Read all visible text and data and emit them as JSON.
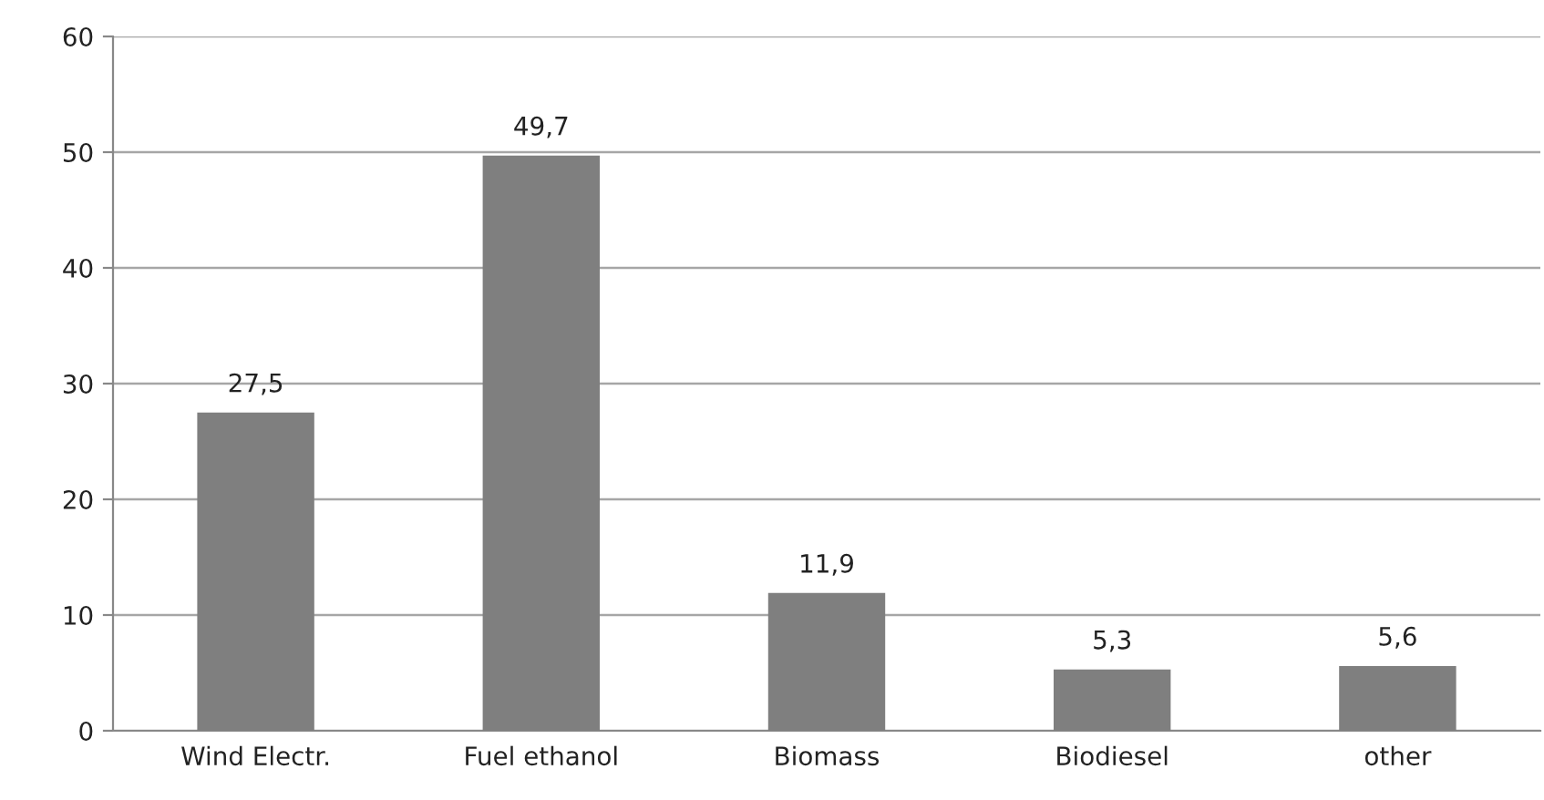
{
  "chart_data": {
    "type": "bar",
    "categories": [
      "Wind Electr.",
      "Fuel ethanol",
      "Biomass",
      "Biodiesel",
      "other"
    ],
    "values": [
      27.5,
      49.7,
      11.9,
      5.3,
      5.6
    ],
    "value_labels": [
      "27,5",
      "49,7",
      "11,9",
      "5,3",
      "5,6"
    ],
    "color": "#7f7f7f",
    "ylim": [
      0,
      60
    ],
    "yticks": [
      0,
      10,
      20,
      30,
      40,
      50,
      60
    ],
    "grid": "y",
    "legend": false
  }
}
